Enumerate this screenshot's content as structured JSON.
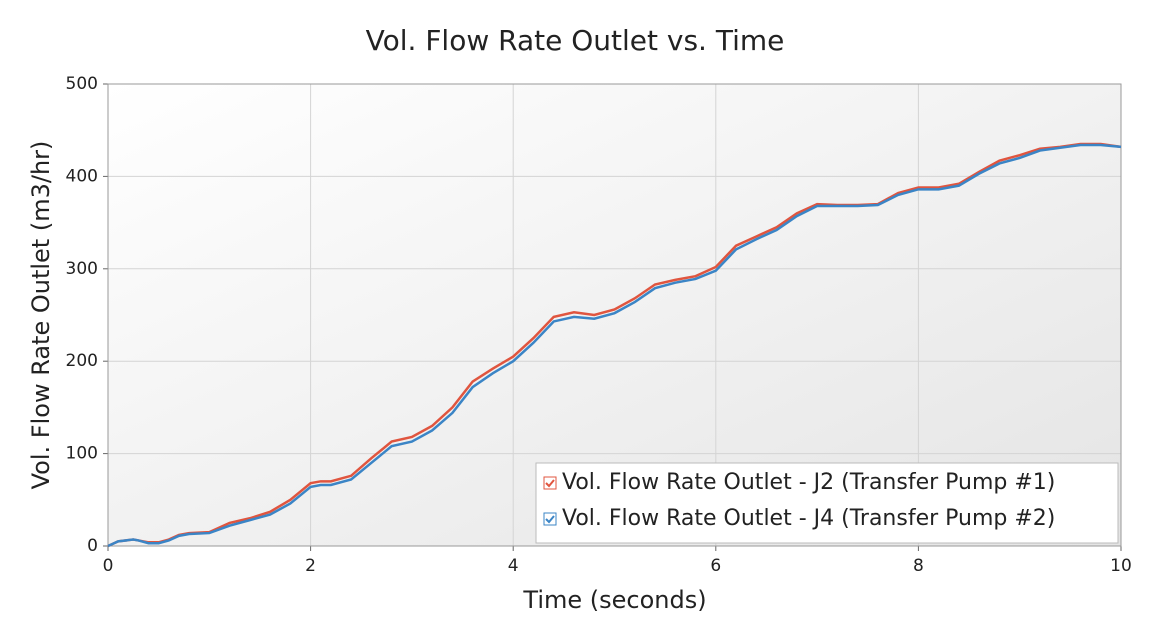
{
  "chart_data": {
    "type": "line",
    "title": "Vol. Flow Rate Outlet vs. Time",
    "x_label": "Time (seconds)",
    "y_label": "Vol. Flow Rate Outlet (m3/hr)",
    "x": [
      0,
      0.1,
      0.25,
      0.3,
      0.4,
      0.5,
      0.6,
      0.7,
      0.8,
      1.0,
      1.2,
      1.4,
      1.6,
      1.8,
      2.0,
      2.1,
      2.2,
      2.4,
      2.6,
      2.8,
      3.0,
      3.2,
      3.4,
      3.6,
      3.8,
      4.0,
      4.2,
      4.4,
      4.6,
      4.8,
      5.0,
      5.2,
      5.4,
      5.6,
      5.8,
      6.0,
      6.2,
      6.4,
      6.6,
      6.8,
      7.0,
      7.2,
      7.4,
      7.6,
      7.8,
      8.0,
      8.2,
      8.4,
      8.6,
      8.8,
      9.0,
      9.2,
      9.4,
      9.6,
      9.8,
      10.0
    ],
    "series": [
      {
        "name": "Vol. Flow Rate Outlet - J2 (Transfer Pump #1)",
        "color": "#e0553f",
        "values": [
          0,
          5,
          7,
          6,
          4,
          4,
          7,
          12,
          14,
          15,
          25,
          30,
          37,
          50,
          68,
          70,
          70,
          76,
          95,
          113,
          118,
          130,
          150,
          178,
          192,
          205,
          225,
          248,
          253,
          250,
          256,
          268,
          283,
          288,
          292,
          302,
          325,
          335,
          345,
          360,
          370,
          369,
          369,
          370,
          382,
          388,
          388,
          392,
          405,
          417,
          423,
          430,
          432,
          435,
          435,
          432
        ]
      },
      {
        "name": "Vol. Flow Rate Outlet - J4 (Transfer Pump #2)",
        "color": "#3b85c6",
        "values": [
          0,
          5,
          7,
          6,
          3,
          3,
          6,
          11,
          13,
          14,
          22,
          28,
          34,
          46,
          64,
          66,
          66,
          72,
          90,
          108,
          113,
          125,
          144,
          172,
          187,
          200,
          220,
          243,
          248,
          246,
          252,
          264,
          279,
          285,
          289,
          298,
          321,
          332,
          342,
          357,
          368,
          368,
          368,
          369,
          380,
          386,
          386,
          390,
          403,
          414,
          420,
          428,
          431,
          434,
          434,
          432
        ]
      }
    ],
    "xlim": [
      0,
      10
    ],
    "xticks": [
      0,
      2,
      4,
      6,
      8,
      10
    ],
    "ylim": [
      0,
      500
    ],
    "yticks": [
      0,
      100,
      200,
      300,
      400,
      500
    ],
    "grid": true,
    "legend": "lower right"
  }
}
